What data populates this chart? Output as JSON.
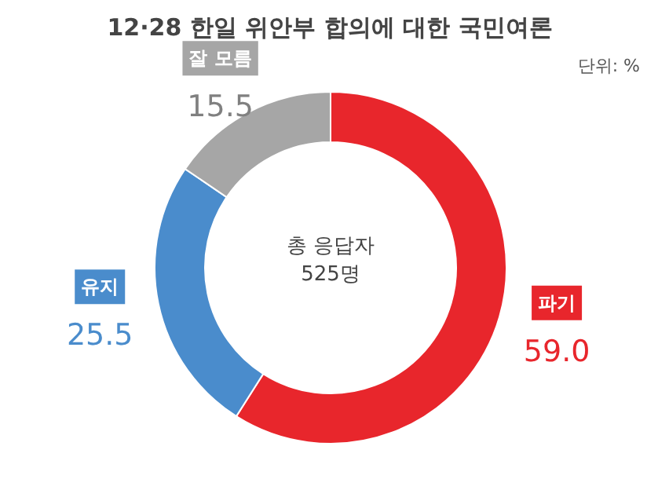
{
  "chart_data": {
    "type": "donut",
    "title": "12·28 한일 위안부 합의에 대한 국민여론",
    "categories": [
      "파기",
      "유지",
      "잘 모름"
    ],
    "values": [
      59.0,
      25.5,
      15.5
    ],
    "value_labels": [
      "59.0",
      "25.5",
      "15.5"
    ],
    "colors": [
      "#e8262c",
      "#4a8ccc",
      "#a6a6a6"
    ],
    "annotations": [
      "단위: %",
      "총 응답자",
      "525명"
    ]
  }
}
